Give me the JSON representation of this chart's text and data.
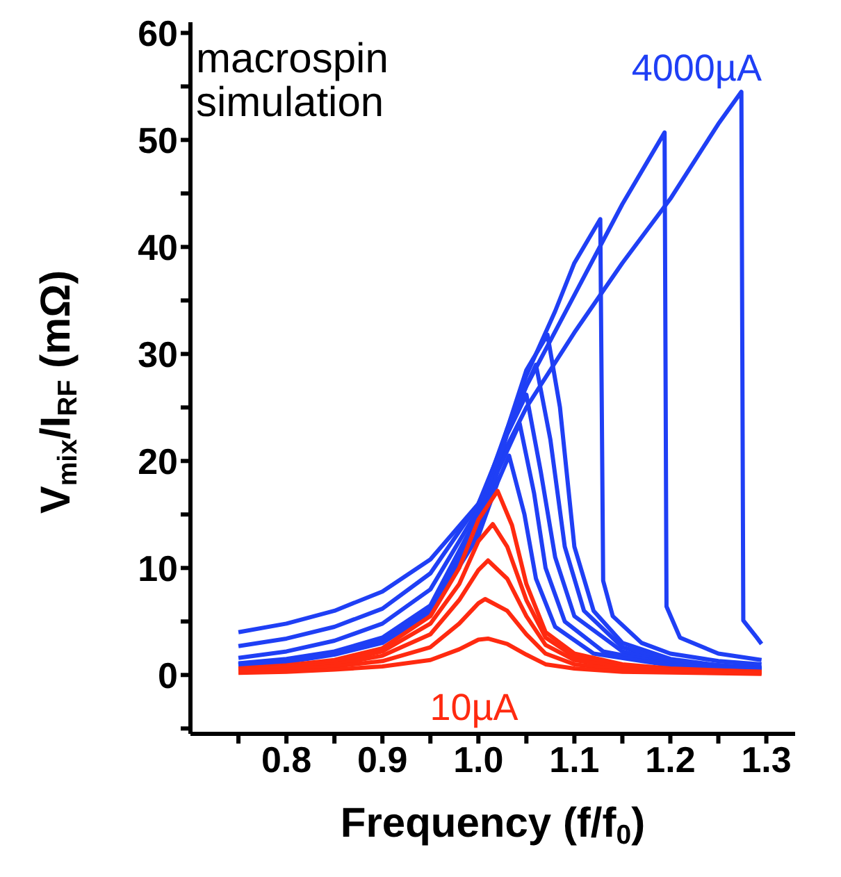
{
  "chart_data": {
    "type": "line",
    "xlabel": "Frequency (f/f$_{0}$)",
    "ylabel": "V$_{mix}$/I$_{RF}$ (mΩ)",
    "annotations": [
      "macrospin\nsimulation",
      "4000µA",
      "10µA"
    ],
    "xlim": [
      0.7,
      1.33
    ],
    "ylim": [
      -5.5,
      61
    ],
    "xticks": [
      {
        "value": 0.75,
        "label": null
      },
      0.8,
      {
        "value": 0.85,
        "label": null
      },
      0.9,
      {
        "value": 0.95,
        "label": null
      },
      {
        "value": 1,
        "label": "1.0"
      },
      {
        "value": 1.05,
        "label": null
      },
      1.1,
      {
        "value": 1.15,
        "label": null
      },
      1.2,
      {
        "value": 1.25,
        "label": null
      },
      1.3
    ],
    "yticks": [
      {
        "value": -5,
        "label": null
      },
      0,
      {
        "value": 5,
        "label": null
      },
      10,
      {
        "value": 15,
        "label": null
      },
      20,
      {
        "value": 25,
        "label": null
      },
      30,
      {
        "value": 35,
        "label": null
      },
      40,
      {
        "value": 45,
        "label": null
      },
      50,
      {
        "value": 55,
        "label": null
      },
      60
    ],
    "grid": false,
    "legend": false,
    "marker": "none",
    "line_style": "solid",
    "series": [
      {
        "color": "#1f3ff5",
        "x": [
          0.75,
          0.8,
          0.85,
          0.9,
          0.95,
          1.0,
          1.05,
          1.1,
          1.15,
          1.2,
          1.25,
          1.274,
          1.276,
          1.29,
          1.295
        ],
        "values": [
          4.0,
          4.8,
          6.0,
          7.8,
          10.8,
          16,
          25,
          32,
          38.5,
          44.5,
          51.5,
          54.5,
          5.1,
          3.5,
          2.9
        ]
      },
      {
        "color": "#1f3ff5",
        "x": [
          0.75,
          0.8,
          0.85,
          0.9,
          0.95,
          1.0,
          1.05,
          1.1,
          1.15,
          1.194,
          1.196,
          1.21,
          1.25,
          1.295
        ],
        "values": [
          2.7,
          3.4,
          4.5,
          6.2,
          9.5,
          16,
          27,
          35.5,
          44,
          50.7,
          6.4,
          3.5,
          2.0,
          1.4
        ]
      },
      {
        "color": "#1f3ff5",
        "x": [
          0.75,
          0.8,
          0.85,
          0.9,
          0.95,
          1.0,
          1.05,
          1.08,
          1.1,
          1.127,
          1.13,
          1.14,
          1.17,
          1.2,
          1.25,
          1.295
        ],
        "values": [
          1.6,
          2.2,
          3.2,
          4.8,
          8,
          15.5,
          28,
          34,
          38.5,
          42.6,
          8.8,
          5.5,
          3.0,
          2.0,
          1.3,
          1.0
        ]
      },
      {
        "color": "#1f3ff5",
        "x": [
          0.75,
          0.8,
          0.85,
          0.9,
          0.95,
          1.0,
          1.03,
          1.05,
          1.072,
          1.085,
          1.1,
          1.12,
          1.15,
          1.2,
          1.25,
          1.295
        ],
        "values": [
          1.1,
          1.5,
          2.2,
          3.5,
          6.5,
          15,
          23,
          28.5,
          31.8,
          25,
          12,
          6,
          3,
          1.5,
          0.9,
          0.7
        ]
      },
      {
        "color": "#1f3ff5",
        "x": [
          0.75,
          0.8,
          0.85,
          0.9,
          0.95,
          1.0,
          1.03,
          1.06,
          1.075,
          1.09,
          1.11,
          1.15,
          1.2,
          1.295
        ],
        "values": [
          1.0,
          1.4,
          2.1,
          3.3,
          6.2,
          14.5,
          23,
          29,
          22,
          12,
          6,
          2.6,
          1.3,
          0.6
        ]
      },
      {
        "color": "#1f3ff5",
        "x": [
          0.75,
          0.8,
          0.85,
          0.9,
          0.95,
          1.0,
          1.03,
          1.05,
          1.065,
          1.08,
          1.1,
          1.15,
          1.2,
          1.295
        ],
        "values": [
          1.0,
          1.3,
          2.0,
          3.2,
          6.0,
          14,
          22.5,
          26.2,
          19,
          11,
          5.5,
          2.2,
          1.1,
          0.6
        ]
      },
      {
        "color": "#1f3ff5",
        "x": [
          0.75,
          0.8,
          0.85,
          0.9,
          0.95,
          1.0,
          1.02,
          1.043,
          1.058,
          1.07,
          1.09,
          1.13,
          1.2,
          1.295
        ],
        "values": [
          0.9,
          1.3,
          2.0,
          3.1,
          5.9,
          13.5,
          19,
          23.5,
          17,
          10,
          5,
          2.2,
          1.0,
          0.5
        ]
      },
      {
        "color": "#1f3ff5",
        "x": [
          0.75,
          0.8,
          0.85,
          0.9,
          0.95,
          1.0,
          1.02,
          1.032,
          1.048,
          1.06,
          1.08,
          1.12,
          1.2,
          1.295
        ],
        "values": [
          0.9,
          1.2,
          1.9,
          3.0,
          5.8,
          13,
          18,
          20.5,
          15,
          9,
          4.5,
          2.0,
          0.9,
          0.5
        ]
      },
      {
        "color": "#ff2a10",
        "x": [
          0.75,
          0.8,
          0.85,
          0.9,
          0.95,
          0.98,
          1.0,
          1.02,
          1.035,
          1.05,
          1.07,
          1.1,
          1.15,
          1.2,
          1.295
        ],
        "values": [
          0.6,
          0.9,
          1.4,
          2.5,
          5.5,
          10,
          14.5,
          17.2,
          14,
          8.5,
          4,
          2,
          1,
          0.6,
          0.3
        ]
      },
      {
        "color": "#ff2a10",
        "x": [
          0.75,
          0.8,
          0.85,
          0.9,
          0.95,
          0.98,
          1.0,
          1.015,
          1.03,
          1.05,
          1.07,
          1.1,
          1.15,
          1.2,
          1.295
        ],
        "values": [
          0.5,
          0.8,
          1.2,
          2.2,
          4.8,
          8.5,
          12.5,
          14.1,
          12,
          7,
          3.5,
          1.7,
          0.9,
          0.5,
          0.3
        ]
      },
      {
        "color": "#ff2a10",
        "x": [
          0.75,
          0.8,
          0.85,
          0.9,
          0.95,
          0.98,
          1.0,
          1.01,
          1.03,
          1.05,
          1.07,
          1.1,
          1.15,
          1.295
        ],
        "values": [
          0.4,
          0.7,
          1.0,
          1.8,
          3.8,
          7,
          9.8,
          10.7,
          9,
          5.5,
          2.8,
          1.4,
          0.7,
          0.2
        ]
      },
      {
        "color": "#ff2a10",
        "x": [
          0.75,
          0.8,
          0.85,
          0.9,
          0.95,
          0.98,
          1.0,
          1.007,
          1.03,
          1.05,
          1.07,
          1.1,
          1.15,
          1.295
        ],
        "values": [
          0.3,
          0.5,
          0.8,
          1.3,
          2.6,
          4.8,
          6.7,
          7.1,
          6,
          3.8,
          2,
          1.0,
          0.5,
          0.2
        ]
      },
      {
        "color": "#ff2a10",
        "x": [
          0.75,
          0.8,
          0.85,
          0.9,
          0.95,
          0.98,
          1.0,
          1.01,
          1.03,
          1.05,
          1.07,
          1.1,
          1.15,
          1.295
        ],
        "values": [
          0.2,
          0.3,
          0.5,
          0.8,
          1.4,
          2.4,
          3.3,
          3.4,
          2.9,
          1.9,
          1.0,
          0.6,
          0.3,
          0.1
        ]
      }
    ]
  }
}
